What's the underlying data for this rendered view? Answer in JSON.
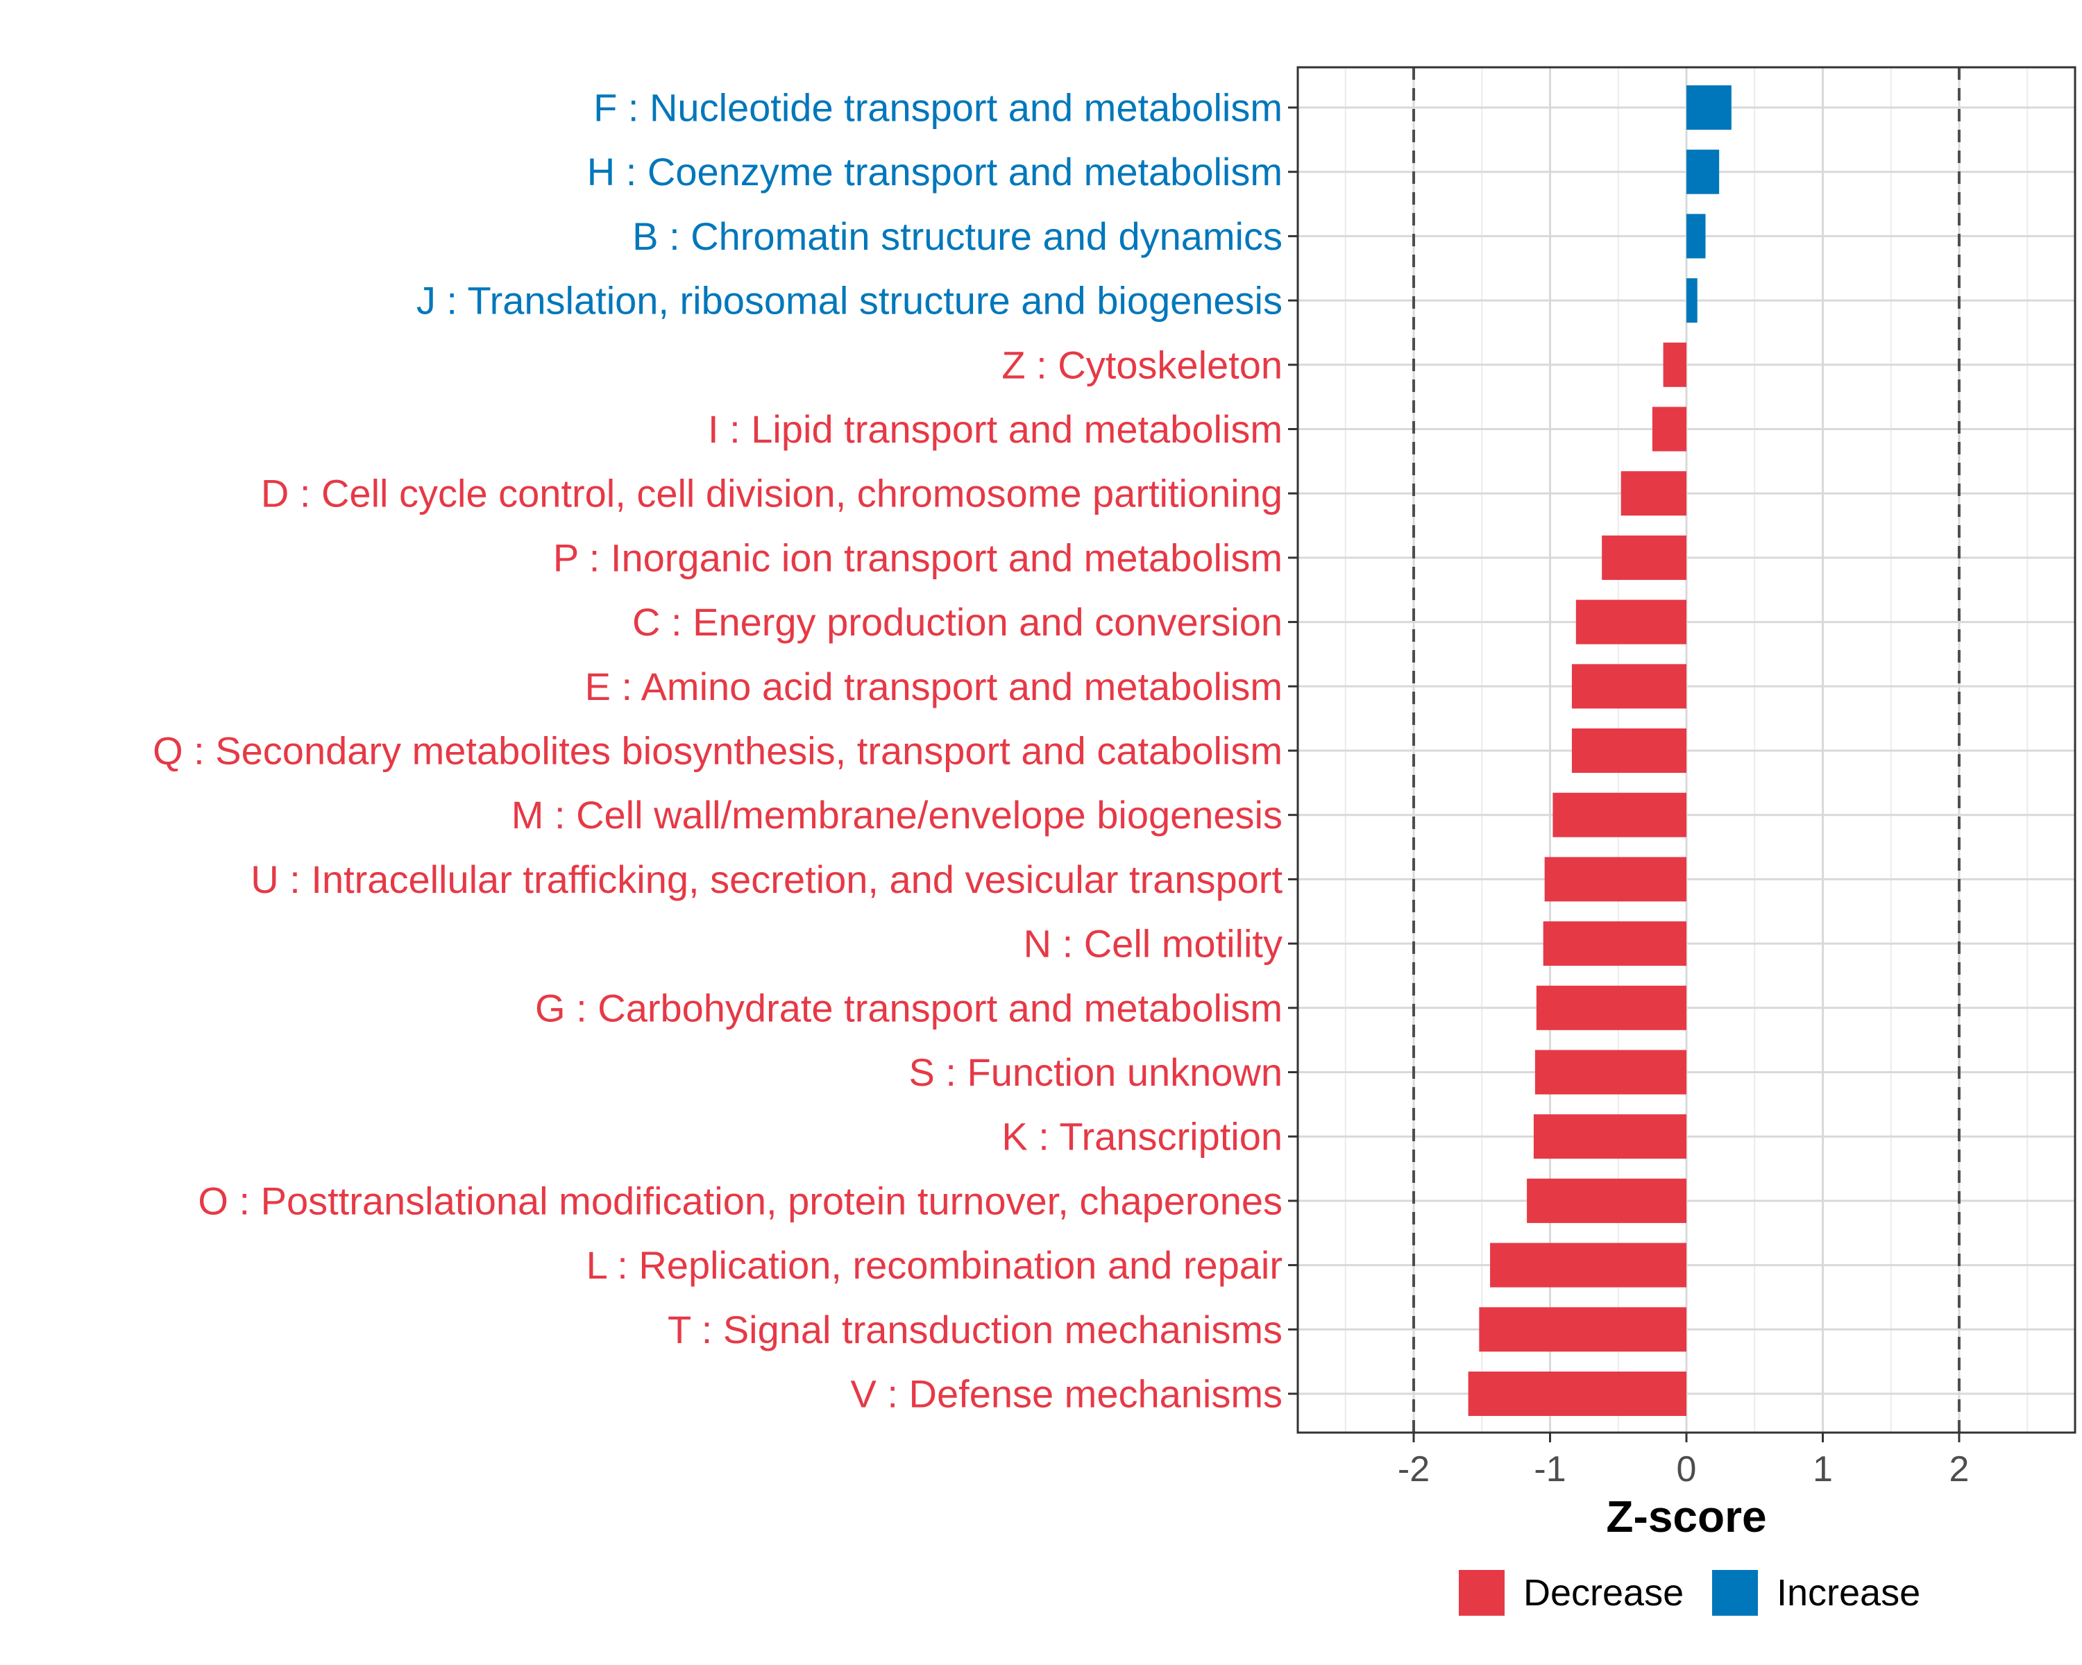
{
  "chart_data": {
    "type": "bar",
    "orientation": "horizontal",
    "title": "",
    "xlabel": "Z-score",
    "ylabel": "",
    "xlim": [
      -2.85,
      2.85
    ],
    "xticks": [
      -2,
      -1,
      0,
      1,
      2
    ],
    "xtick_labels": [
      "-2",
      "-1",
      "0",
      "1",
      "2"
    ],
    "reference_lines": [
      -2,
      2
    ],
    "grid": true,
    "categories": [
      "F : Nucleotide transport and metabolism",
      "H : Coenzyme transport and metabolism",
      "B : Chromatin structure and dynamics",
      "J : Translation, ribosomal structure and biogenesis",
      "Z : Cytoskeleton",
      "I : Lipid transport and metabolism",
      "D : Cell cycle control, cell division, chromosome partitioning",
      "P : Inorganic ion transport and metabolism",
      "C : Energy production and conversion",
      "E : Amino acid transport and metabolism",
      "Q : Secondary metabolites biosynthesis, transport and catabolism",
      "M : Cell wall/membrane/envelope biogenesis",
      "U : Intracellular trafficking, secretion, and vesicular transport",
      "N : Cell motility",
      "G : Carbohydrate transport and metabolism",
      "S : Function unknown",
      "K : Transcription",
      "O : Posttranslational modification, protein turnover, chaperones",
      "L : Replication, recombination and repair",
      "T : Signal transduction mechanisms",
      "V : Defense mechanisms"
    ],
    "values": [
      0.33,
      0.24,
      0.14,
      0.08,
      -0.17,
      -0.25,
      -0.48,
      -0.62,
      -0.81,
      -0.84,
      -0.84,
      -0.98,
      -1.04,
      -1.05,
      -1.1,
      -1.11,
      -1.12,
      -1.17,
      -1.44,
      -1.52,
      -1.6
    ],
    "legend": {
      "position": "bottom",
      "entries": [
        {
          "name": "Decrease",
          "color": "#E63946"
        },
        {
          "name": "Increase",
          "color": "#0077BB"
        }
      ]
    }
  },
  "colors": {
    "decrease": "#E63946",
    "increase": "#0077BB",
    "grid": "#d9d9d9",
    "panel_border": "#333333",
    "reference_line": "#4d4d4d"
  }
}
